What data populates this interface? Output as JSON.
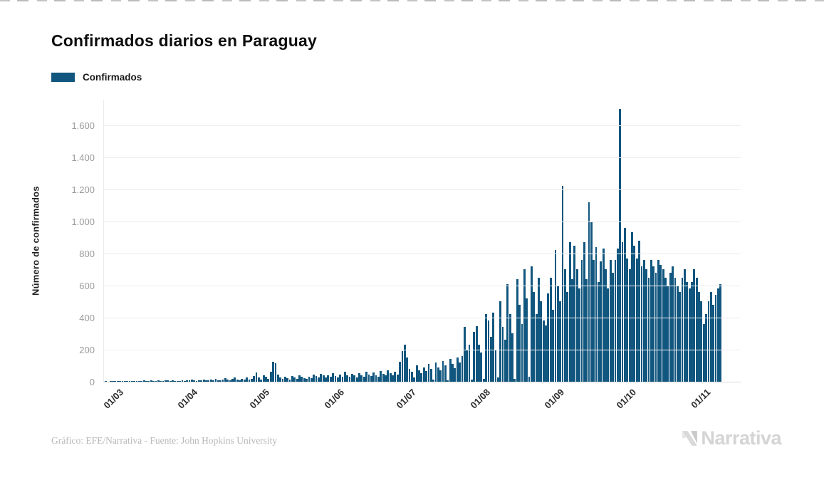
{
  "header": {
    "title": "Confirmados diarios en Paraguay"
  },
  "legend": {
    "label": "Confirmados",
    "swatch_color": "#11567E"
  },
  "chart_data": {
    "type": "bar",
    "title": "Confirmados diarios en Paraguay",
    "ylabel": "Número de confirmados",
    "xlabel": "",
    "series_name": "Confirmados",
    "bar_color": "#11567E",
    "grid": true,
    "legend_position": "top-left",
    "ylim": [
      0,
      1700
    ],
    "yticks": [
      0,
      200,
      400,
      600,
      800,
      1000,
      1200,
      1400,
      1600
    ],
    "ytick_labels": [
      "0",
      "200",
      "400",
      "600",
      "800",
      "1.000",
      "1.200",
      "1.400",
      "1.600"
    ],
    "x_start_date": "01/03",
    "x_tick_labels": [
      "01/03",
      "01/04",
      "01/05",
      "01/06",
      "01/07",
      "01/08",
      "01/09",
      "01/10",
      "01/11"
    ],
    "x_tick_day_index": [
      0,
      31,
      61,
      92,
      122,
      153,
      184,
      214,
      245
    ],
    "values": [
      1,
      0,
      2,
      1,
      3,
      2,
      5,
      3,
      2,
      6,
      4,
      2,
      5,
      3,
      6,
      4,
      7,
      5,
      3,
      8,
      5,
      4,
      9,
      6,
      4,
      10,
      7,
      5,
      8,
      6,
      4,
      5,
      8,
      6,
      10,
      7,
      12,
      9,
      6,
      11,
      8,
      14,
      10,
      7,
      13,
      9,
      16,
      11,
      8,
      15,
      22,
      12,
      9,
      17,
      27,
      13,
      10,
      18,
      12,
      25,
      15,
      20,
      35,
      58,
      25,
      15,
      40,
      30,
      20,
      60,
      125,
      115,
      45,
      25,
      18,
      30,
      22,
      15,
      35,
      28,
      20,
      40,
      30,
      22,
      18,
      32,
      24,
      45,
      35,
      25,
      50,
      38,
      25,
      40,
      30,
      55,
      35,
      28,
      45,
      32,
      60,
      42,
      30,
      50,
      38,
      28,
      55,
      40,
      30,
      62,
      45,
      35,
      58,
      42,
      32,
      65,
      48,
      38,
      70,
      52,
      40,
      60,
      45,
      125,
      190,
      230,
      150,
      80,
      60,
      25,
      100,
      70,
      55,
      90,
      65,
      110,
      80,
      15,
      120,
      90,
      70,
      130,
      100,
      10,
      140,
      110,
      85,
      150,
      120,
      160,
      340,
      200,
      230,
      15,
      310,
      345,
      230,
      180,
      20,
      420,
      380,
      280,
      430,
      200,
      25,
      500,
      340,
      260,
      610,
      420,
      300,
      20,
      640,
      480,
      360,
      700,
      520,
      30,
      720,
      560,
      420,
      650,
      500,
      380,
      350,
      550,
      650,
      450,
      820,
      600,
      500,
      1220,
      700,
      560,
      870,
      640,
      850,
      700,
      580,
      760,
      870,
      640,
      1120,
      1000,
      760,
      840,
      620,
      750,
      830,
      700,
      580,
      760,
      680,
      760,
      830,
      1700,
      870,
      960,
      770,
      700,
      930,
      850,
      770,
      880,
      720,
      760,
      700,
      650,
      760,
      720,
      680,
      760,
      730,
      700,
      650,
      600,
      680,
      720,
      650,
      600,
      560,
      650,
      700,
      620,
      580,
      620,
      700,
      650,
      560,
      500,
      360,
      420,
      500,
      560,
      480,
      540,
      580,
      610
    ]
  },
  "footer": {
    "attribution": "Gráfico: EFE/Narrativa - Fuente: John Hopkins University",
    "logo_text": "Narrativa"
  }
}
